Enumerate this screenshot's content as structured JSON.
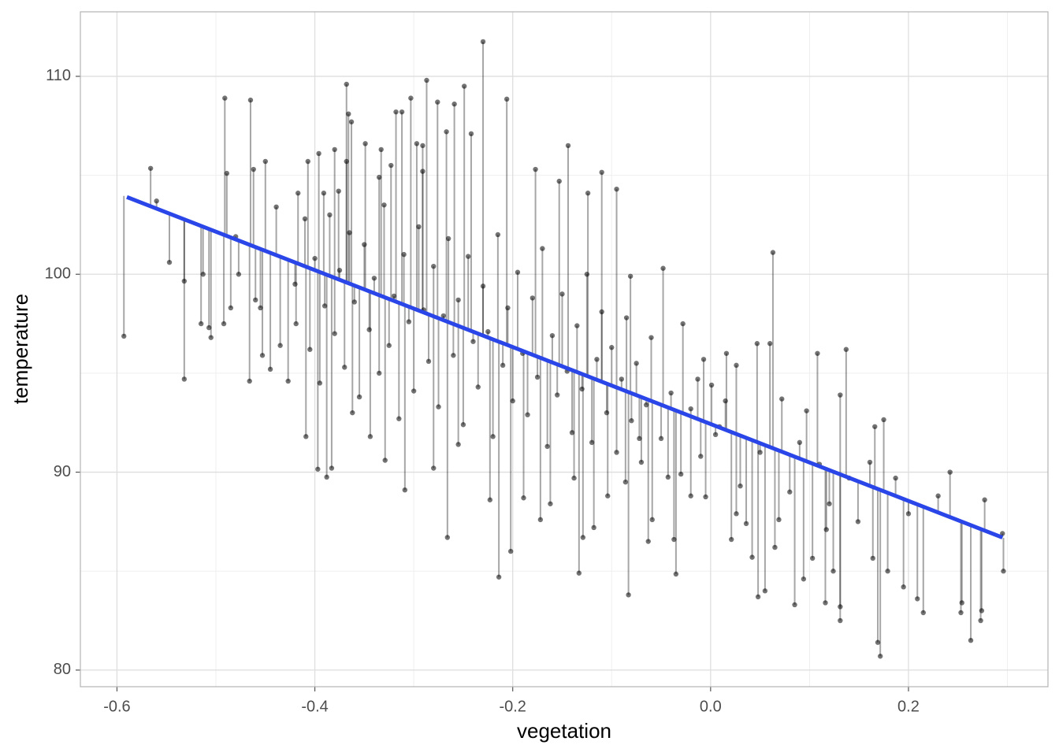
{
  "chart_data": {
    "type": "scatter",
    "x_label": "vegetation",
    "y_label": "temperature",
    "xlim": [
      -0.637,
      0.341
    ],
    "ylim": [
      79.16,
      113.26
    ],
    "xticks": [
      -0.6,
      -0.4,
      -0.2,
      {
        "value": 0,
        "label": "0.0"
      },
      0.2
    ],
    "yticks": [
      80,
      90,
      100,
      110
    ],
    "grid": true,
    "color": "#000000",
    "x": [
      -0.593,
      -0.566,
      -0.56,
      -0.547,
      -0.532,
      -0.532,
      -0.513,
      -0.515,
      -0.507,
      -0.505,
      -0.491,
      -0.489,
      -0.492,
      -0.485,
      -0.48,
      -0.477,
      -0.465,
      -0.466,
      -0.462,
      -0.46,
      -0.455,
      -0.45,
      -0.453,
      -0.445,
      -0.439,
      -0.435,
      -0.427,
      -0.417,
      -0.419,
      -0.409,
      -0.407,
      -0.396,
      -0.397,
      -0.388,
      -0.383,
      -0.38,
      -0.391,
      -0.376,
      -0.368,
      -0.366,
      -0.363,
      -0.368,
      -0.362,
      -0.349,
      -0.344,
      -0.335,
      -0.333,
      -0.329,
      -0.323,
      -0.318,
      -0.312,
      -0.309,
      -0.303,
      -0.297,
      -0.291,
      -0.287,
      -0.291,
      -0.28,
      -0.276,
      -0.267,
      -0.266,
      -0.259,
      -0.255,
      -0.249,
      -0.242,
      -0.23,
      -0.223,
      -0.214,
      -0.206,
      -0.202,
      -0.189,
      -0.177,
      -0.172,
      -0.162,
      -0.153,
      -0.144,
      -0.138,
      -0.133,
      -0.129,
      -0.124,
      -0.11,
      -0.118,
      -0.104,
      -0.095,
      -0.086,
      -0.083,
      -0.081,
      -0.072,
      -0.063,
      -0.059,
      -0.048,
      -0.043,
      -0.035,
      -0.037,
      -0.028,
      -0.02,
      -0.013,
      -0.005,
      -0.007,
      0.001,
      0.009,
      0.016,
      0.021,
      0.026,
      0.026,
      0.036,
      0.042,
      0.048,
      0.047,
      0.055,
      0.06,
      0.063,
      0.065,
      0.069,
      0.072,
      0.085,
      0.094,
      0.097,
      0.103,
      0.108,
      0.11,
      0.116,
      0.117,
      0.124,
      0.131,
      0.131,
      0.131,
      0.137,
      0.149,
      0.161,
      0.164,
      0.166,
      0.169,
      0.1715,
      0.175,
      0.179,
      0.187,
      0.195,
      0.209,
      0.215,
      0.242,
      0.253,
      0.254,
      0.263,
      0.273,
      0.274,
      0.277,
      0.295,
      0.296,
      -0.42,
      -0.41,
      -0.405,
      -0.4,
      -0.395,
      -0.39,
      -0.385,
      -0.38,
      -0.375,
      -0.37,
      -0.365,
      -0.36,
      -0.355,
      -0.35,
      -0.345,
      -0.34,
      -0.335,
      -0.33,
      -0.325,
      -0.32,
      -0.315,
      -0.31,
      -0.305,
      -0.3,
      -0.295,
      -0.29,
      -0.285,
      -0.28,
      -0.275,
      -0.27,
      -0.265,
      -0.26,
      -0.255,
      -0.25,
      -0.245,
      -0.24,
      -0.235,
      -0.23,
      -0.225,
      -0.22,
      -0.215,
      -0.21,
      -0.205,
      -0.2,
      -0.195,
      -0.19,
      -0.185,
      -0.18,
      -0.175,
      -0.17,
      -0.165,
      -0.16,
      -0.155,
      -0.15,
      -0.145,
      -0.14,
      -0.135,
      -0.13,
      -0.125,
      -0.12,
      -0.115,
      -0.11,
      -0.105,
      -0.1,
      -0.095,
      -0.09,
      -0.085,
      -0.08,
      -0.075,
      -0.07,
      -0.065,
      -0.06,
      -0.05,
      -0.04,
      -0.03,
      -0.02,
      -0.01,
      0.005,
      0.015,
      0.03,
      0.05,
      0.08,
      0.09,
      0.12,
      0.14,
      0.2,
      0.23
    ],
    "y": [
      96.87,
      105.35,
      103.7,
      100.6,
      99.65,
      94.7,
      100.0,
      97.5,
      97.3,
      96.8,
      108.9,
      105.1,
      97.5,
      98.3,
      101.9,
      100.0,
      108.8,
      94.6,
      105.3,
      98.7,
      98.3,
      105.7,
      95.9,
      95.2,
      103.4,
      96.4,
      94.6,
      104.1,
      97.5,
      91.8,
      105.7,
      106.1,
      90.15,
      89.75,
      90.2,
      106.3,
      104.1,
      104.2,
      109.6,
      108.1,
      107.7,
      105.7,
      93.0,
      106.6,
      91.8,
      104.9,
      106.3,
      90.6,
      105.5,
      108.2,
      108.2,
      89.1,
      108.9,
      106.6,
      106.5,
      109.8,
      105.2,
      90.2,
      108.7,
      107.2,
      86.7,
      108.6,
      91.4,
      109.5,
      107.1,
      111.75,
      88.6,
      84.7,
      108.85,
      86.0,
      88.7,
      105.3,
      87.6,
      88.4,
      104.7,
      106.5,
      89.7,
      84.9,
      86.7,
      104.1,
      105.15,
      87.2,
      88.8,
      104.3,
      89.5,
      83.8,
      99.9,
      91.7,
      86.5,
      87.6,
      100.3,
      89.75,
      84.85,
      86.6,
      97.5,
      88.8,
      94.7,
      88.75,
      95.7,
      94.4,
      92.3,
      96.0,
      86.6,
      87.9,
      95.4,
      87.4,
      85.7,
      83.7,
      96.5,
      84.0,
      96.5,
      101.1,
      86.2,
      87.6,
      93.7,
      83.3,
      84.6,
      93.1,
      85.65,
      96.0,
      90.4,
      83.4,
      87.1,
      85.0,
      83.2,
      82.5,
      93.9,
      96.2,
      87.5,
      90.5,
      85.65,
      92.3,
      81.4,
      80.7,
      92.65,
      85.0,
      89.7,
      84.2,
      83.6,
      82.9,
      90.0,
      82.9,
      83.4,
      81.5,
      82.5,
      83.0,
      88.6,
      86.9,
      85.0,
      99.5,
      102.8,
      96.2,
      100.8,
      94.5,
      98.4,
      103.0,
      97.0,
      100.2,
      95.3,
      102.1,
      98.6,
      93.8,
      101.5,
      97.2,
      99.8,
      95.0,
      103.5,
      96.4,
      98.9,
      92.7,
      101.0,
      97.6,
      94.1,
      102.4,
      98.2,
      95.6,
      100.4,
      93.3,
      97.9,
      101.8,
      95.9,
      98.7,
      92.4,
      100.9,
      96.6,
      94.3,
      99.4,
      97.1,
      91.8,
      102.0,
      95.4,
      98.3,
      93.6,
      100.1,
      96.0,
      92.9,
      98.8,
      94.8,
      101.3,
      91.3,
      96.9,
      93.9,
      99.0,
      95.1,
      92.0,
      97.4,
      94.2,
      100.0,
      91.5,
      95.7,
      98.1,
      93.0,
      96.3,
      91.0,
      94.7,
      97.8,
      92.6,
      95.5,
      90.5,
      93.4,
      96.8,
      91.7,
      94.0,
      89.9,
      93.2,
      90.8,
      91.9,
      93.6,
      89.3,
      91.0,
      89.0,
      91.5,
      88.4,
      89.7,
      87.9,
      88.8
    ],
    "fit": {
      "type": "line",
      "color": "#2a45e8",
      "x": [
        -0.59,
        0.295
      ],
      "y": [
        103.9,
        86.7
      ]
    }
  }
}
